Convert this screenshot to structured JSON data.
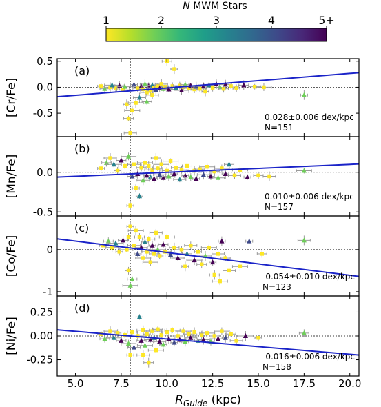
{
  "colorbar": {
    "label_prefix": "N",
    "label_rest": " MWM Stars",
    "ticks": [
      "1",
      "2",
      "3",
      "4",
      "5+"
    ],
    "tick_values": [
      1,
      2,
      3,
      4,
      5
    ],
    "range": [
      1,
      5
    ],
    "colormap": [
      "#fde725",
      "#b5de2b",
      "#6ece58",
      "#35b779",
      "#1f9e89",
      "#26828e",
      "#31688e",
      "#3e4989",
      "#482878",
      "#440154"
    ]
  },
  "xaxis": {
    "label_main": "R",
    "label_sub": "Guide",
    "label_unit": " (kpc)",
    "range": [
      4.0,
      20.5
    ],
    "ticks": [
      5.0,
      7.5,
      10.0,
      12.5,
      15.0,
      17.5,
      20.0
    ],
    "tick_labels": [
      "5.0",
      "7.5",
      "10.0",
      "12.5",
      "15.0",
      "17.5",
      "20.0"
    ]
  },
  "solar_radius": 8.0,
  "chart_data": [
    {
      "type": "scatter",
      "panel_label": "(a)",
      "ylabel": "[Cr/Fe]",
      "ylim": [
        -0.95,
        0.55
      ],
      "yticks": [
        0.5,
        0.0,
        -0.5
      ],
      "ytick_labels": [
        "0.5",
        "0.0",
        "-0.5"
      ],
      "trend": {
        "slope": 0.028,
        "value_at_8": -0.07,
        "text": "0.028±0.006 dex/kpc"
      },
      "n_text": "N=151",
      "points": [
        [
          6.4,
          0.02,
          1
        ],
        [
          6.6,
          -0.03,
          2
        ],
        [
          6.9,
          0.0,
          1
        ],
        [
          7.0,
          0.04,
          3
        ],
        [
          7.2,
          -0.02,
          1
        ],
        [
          7.4,
          0.03,
          5
        ],
        [
          7.6,
          -0.05,
          1
        ],
        [
          7.7,
          0.01,
          2
        ],
        [
          7.8,
          -0.33,
          1
        ],
        [
          7.9,
          -0.6,
          1
        ],
        [
          8.0,
          -0.88,
          1
        ],
        [
          8.1,
          -0.45,
          1
        ],
        [
          8.2,
          0.05,
          4
        ],
        [
          8.4,
          -0.02,
          1
        ],
        [
          8.5,
          -0.2,
          3
        ],
        [
          8.6,
          0.02,
          5
        ],
        [
          8.7,
          -0.04,
          1
        ],
        [
          8.8,
          0.06,
          2
        ],
        [
          8.9,
          -0.1,
          1
        ],
        [
          9.0,
          0.02,
          5
        ],
        [
          9.1,
          -0.07,
          1
        ],
        [
          9.2,
          0.04,
          3
        ],
        [
          9.3,
          -0.01,
          1
        ],
        [
          9.4,
          -0.05,
          4
        ],
        [
          9.5,
          0.03,
          1
        ],
        [
          9.6,
          -0.02,
          5
        ],
        [
          9.7,
          0.06,
          1
        ],
        [
          9.8,
          -0.03,
          2
        ],
        [
          9.9,
          0.01,
          1
        ],
        [
          10.0,
          0.5,
          1
        ],
        [
          10.1,
          -0.04,
          5
        ],
        [
          10.3,
          0.02,
          1
        ],
        [
          10.4,
          0.35,
          1
        ],
        [
          10.5,
          -0.01,
          3
        ],
        [
          10.7,
          0.03,
          1
        ],
        [
          10.8,
          -0.06,
          5
        ],
        [
          10.9,
          0.0,
          1
        ],
        [
          11.0,
          0.05,
          2
        ],
        [
          11.2,
          -0.02,
          1
        ],
        [
          11.3,
          0.03,
          5
        ],
        [
          11.5,
          -0.04,
          1
        ],
        [
          11.6,
          0.01,
          4
        ],
        [
          11.8,
          -0.03,
          1
        ],
        [
          12.0,
          0.02,
          5
        ],
        [
          12.1,
          -0.08,
          1
        ],
        [
          12.3,
          0.04,
          3
        ],
        [
          12.5,
          -0.01,
          1
        ],
        [
          12.7,
          0.06,
          5
        ],
        [
          12.9,
          0.0,
          2
        ],
        [
          13.1,
          -0.03,
          1
        ],
        [
          13.2,
          0.05,
          5
        ],
        [
          13.5,
          0.02,
          1
        ],
        [
          13.8,
          -0.02,
          1
        ],
        [
          14.2,
          0.04,
          5
        ],
        [
          14.8,
          0.01,
          1
        ],
        [
          15.3,
          0.0,
          1
        ],
        [
          17.5,
          -0.15,
          2
        ],
        [
          8.9,
          -0.28,
          2
        ],
        [
          9.2,
          -0.15,
          1
        ],
        [
          8.3,
          -0.3,
          1
        ]
      ]
    },
    {
      "type": "scatter",
      "panel_label": "(b)",
      "ylabel": "[Mn/Fe]",
      "ylim": [
        -0.55,
        0.45
      ],
      "yticks": [
        0.0,
        -0.5
      ],
      "ytick_labels": [
        "0.0",
        "-0.5"
      ],
      "trend": {
        "slope": 0.01,
        "value_at_8": -0.02,
        "text": "0.010±0.006 dex/kpc"
      },
      "n_text": "N=157",
      "points": [
        [
          6.4,
          0.05,
          1
        ],
        [
          6.7,
          0.12,
          2
        ],
        [
          6.9,
          0.18,
          1
        ],
        [
          7.1,
          0.1,
          3
        ],
        [
          7.3,
          0.02,
          1
        ],
        [
          7.5,
          0.15,
          5
        ],
        [
          7.7,
          0.08,
          1
        ],
        [
          7.9,
          0.2,
          2
        ],
        [
          8.0,
          -0.42,
          1
        ],
        [
          8.1,
          -0.05,
          4
        ],
        [
          8.2,
          0.1,
          1
        ],
        [
          8.4,
          -0.02,
          5
        ],
        [
          8.5,
          -0.3,
          3
        ],
        [
          8.6,
          0.06,
          1
        ],
        [
          8.7,
          -0.1,
          2
        ],
        [
          8.8,
          0.12,
          1
        ],
        [
          8.9,
          -0.04,
          5
        ],
        [
          9.0,
          0.08,
          1
        ],
        [
          9.1,
          -0.06,
          3
        ],
        [
          9.2,
          0.03,
          1
        ],
        [
          9.3,
          -0.08,
          5
        ],
        [
          9.5,
          0.05,
          1
        ],
        [
          9.6,
          -0.03,
          4
        ],
        [
          9.7,
          0.1,
          1
        ],
        [
          9.8,
          -0.07,
          5
        ],
        [
          10.0,
          0.02,
          1
        ],
        [
          10.1,
          -0.05,
          2
        ],
        [
          10.2,
          0.14,
          1
        ],
        [
          10.4,
          -0.02,
          5
        ],
        [
          10.5,
          0.06,
          1
        ],
        [
          10.7,
          -0.09,
          3
        ],
        [
          10.8,
          0.03,
          1
        ],
        [
          11.0,
          -0.04,
          5
        ],
        [
          11.1,
          0.08,
          1
        ],
        [
          11.3,
          -0.06,
          2
        ],
        [
          11.5,
          0.02,
          1
        ],
        [
          11.6,
          -0.08,
          5
        ],
        [
          11.8,
          0.04,
          1
        ],
        [
          12.0,
          -0.03,
          4
        ],
        [
          12.2,
          0.07,
          1
        ],
        [
          12.4,
          -0.05,
          5
        ],
        [
          12.6,
          0.01,
          1
        ],
        [
          12.8,
          -0.07,
          2
        ],
        [
          13.0,
          0.05,
          1
        ],
        [
          13.2,
          -0.02,
          5
        ],
        [
          13.4,
          0.1,
          3
        ],
        [
          13.7,
          -0.04,
          1
        ],
        [
          14.0,
          0.03,
          1
        ],
        [
          14.4,
          -0.06,
          5
        ],
        [
          15.0,
          -0.04,
          1
        ],
        [
          15.6,
          -0.05,
          1
        ],
        [
          17.5,
          0.02,
          2
        ],
        [
          8.3,
          -0.2,
          1
        ],
        [
          9.4,
          0.18,
          1
        ]
      ]
    },
    {
      "type": "scatter",
      "panel_label": "(c)",
      "ylabel": "[Co/Fe]",
      "ylim": [
        -1.1,
        0.8
      ],
      "yticks": [
        0.0,
        -1.0
      ],
      "ytick_labels": [
        "0",
        "-1"
      ],
      "trend": {
        "slope": -0.054,
        "value_at_8": 0.04,
        "text": "-0.054±0.010 dex/kpc"
      },
      "n_text": "N=123",
      "points": [
        [
          6.5,
          0.1,
          1
        ],
        [
          6.8,
          0.2,
          2
        ],
        [
          7.0,
          0.05,
          1
        ],
        [
          7.2,
          0.15,
          3
        ],
        [
          7.4,
          -0.05,
          1
        ],
        [
          7.6,
          0.22,
          5
        ],
        [
          7.8,
          0.0,
          1
        ],
        [
          7.9,
          0.3,
          1
        ],
        [
          8.0,
          0.55,
          1
        ],
        [
          8.1,
          -0.7,
          2
        ],
        [
          8.2,
          0.1,
          1
        ],
        [
          8.3,
          0.45,
          1
        ],
        [
          8.4,
          -0.1,
          4
        ],
        [
          8.5,
          0.3,
          1
        ],
        [
          8.6,
          0.05,
          5
        ],
        [
          8.7,
          -0.2,
          1
        ],
        [
          8.8,
          0.18,
          3
        ],
        [
          8.9,
          -0.05,
          1
        ],
        [
          9.0,
          0.25,
          1
        ],
        [
          9.1,
          -0.3,
          1
        ],
        [
          9.2,
          0.1,
          5
        ],
        [
          9.3,
          -0.1,
          1
        ],
        [
          9.4,
          0.4,
          1
        ],
        [
          9.5,
          0.0,
          2
        ],
        [
          9.6,
          -0.15,
          1
        ],
        [
          9.8,
          0.12,
          5
        ],
        [
          9.9,
          -0.05,
          1
        ],
        [
          10.0,
          0.3,
          1
        ],
        [
          10.2,
          -0.12,
          4
        ],
        [
          10.4,
          0.05,
          1
        ],
        [
          10.6,
          -0.2,
          5
        ],
        [
          10.8,
          0.0,
          1
        ],
        [
          11.0,
          -0.4,
          1
        ],
        [
          11.1,
          -0.1,
          3
        ],
        [
          11.3,
          0.1,
          1
        ],
        [
          11.5,
          -0.25,
          5
        ],
        [
          11.7,
          -0.05,
          1
        ],
        [
          11.9,
          -0.35,
          1
        ],
        [
          12.1,
          -0.15,
          2
        ],
        [
          12.3,
          0.05,
          1
        ],
        [
          12.5,
          -0.3,
          5
        ],
        [
          12.6,
          -0.6,
          1
        ],
        [
          12.8,
          -0.1,
          1
        ],
        [
          12.9,
          -0.75,
          1
        ],
        [
          13.0,
          0.2,
          5
        ],
        [
          13.2,
          -0.2,
          1
        ],
        [
          13.4,
          -0.5,
          1
        ],
        [
          14.0,
          -0.4,
          1
        ],
        [
          14.5,
          0.2,
          4
        ],
        [
          15.2,
          -0.1,
          1
        ],
        [
          17.5,
          0.22,
          2
        ],
        [
          8.0,
          -0.85,
          2
        ],
        [
          7.9,
          -0.5,
          1
        ]
      ]
    },
    {
      "type": "scatter",
      "panel_label": "(d)",
      "ylabel": "[Ni/Fe]",
      "ylim": [
        -0.42,
        0.42
      ],
      "yticks": [
        0.25,
        0.0,
        -0.25
      ],
      "ytick_labels": [
        "0.25",
        "0.00",
        "-0.25"
      ],
      "trend": {
        "slope": -0.016,
        "value_at_8": 0.0,
        "text": "-0.016±0.006 dex/kpc"
      },
      "n_text": "N=158",
      "points": [
        [
          6.4,
          0.02,
          1
        ],
        [
          6.6,
          -0.03,
          2
        ],
        [
          6.9,
          0.05,
          1
        ],
        [
          7.1,
          -0.02,
          3
        ],
        [
          7.3,
          0.03,
          1
        ],
        [
          7.5,
          -0.05,
          5
        ],
        [
          7.7,
          0.01,
          1
        ],
        [
          7.9,
          -0.08,
          2
        ],
        [
          8.0,
          -0.2,
          1
        ],
        [
          8.1,
          0.04,
          1
        ],
        [
          8.2,
          -0.12,
          4
        ],
        [
          8.4,
          0.0,
          1
        ],
        [
          8.5,
          0.2,
          3
        ],
        [
          8.6,
          -0.05,
          5
        ],
        [
          8.7,
          0.06,
          1
        ],
        [
          8.8,
          -0.1,
          2
        ],
        [
          8.9,
          0.02,
          1
        ],
        [
          9.0,
          -0.28,
          1
        ],
        [
          9.1,
          -0.04,
          5
        ],
        [
          9.2,
          0.05,
          1
        ],
        [
          9.3,
          -0.02,
          3
        ],
        [
          9.5,
          0.07,
          1
        ],
        [
          9.6,
          -0.06,
          5
        ],
        [
          9.7,
          0.01,
          1
        ],
        [
          9.8,
          -0.09,
          2
        ],
        [
          10.0,
          0.04,
          1
        ],
        [
          10.1,
          -0.03,
          5
        ],
        [
          10.3,
          0.06,
          1
        ],
        [
          10.4,
          -0.07,
          4
        ],
        [
          10.6,
          0.0,
          1
        ],
        [
          10.7,
          -0.04,
          5
        ],
        [
          10.9,
          0.05,
          1
        ],
        [
          11.0,
          -0.06,
          2
        ],
        [
          11.2,
          0.02,
          1
        ],
        [
          11.3,
          -0.02,
          5
        ],
        [
          11.5,
          0.04,
          1
        ],
        [
          11.7,
          -0.05,
          3
        ],
        [
          11.9,
          0.01,
          1
        ],
        [
          12.0,
          -0.04,
          5
        ],
        [
          12.2,
          0.03,
          1
        ],
        [
          12.4,
          -0.06,
          2
        ],
        [
          12.6,
          0.0,
          1
        ],
        [
          12.8,
          -0.03,
          5
        ],
        [
          13.0,
          0.05,
          1
        ],
        [
          13.2,
          -0.02,
          4
        ],
        [
          13.5,
          0.02,
          1
        ],
        [
          13.8,
          -0.05,
          1
        ],
        [
          14.3,
          0.0,
          5
        ],
        [
          15.0,
          -0.02,
          1
        ],
        [
          17.5,
          0.03,
          2
        ],
        [
          8.7,
          -0.2,
          1
        ],
        [
          9.4,
          -0.15,
          1
        ]
      ]
    }
  ]
}
